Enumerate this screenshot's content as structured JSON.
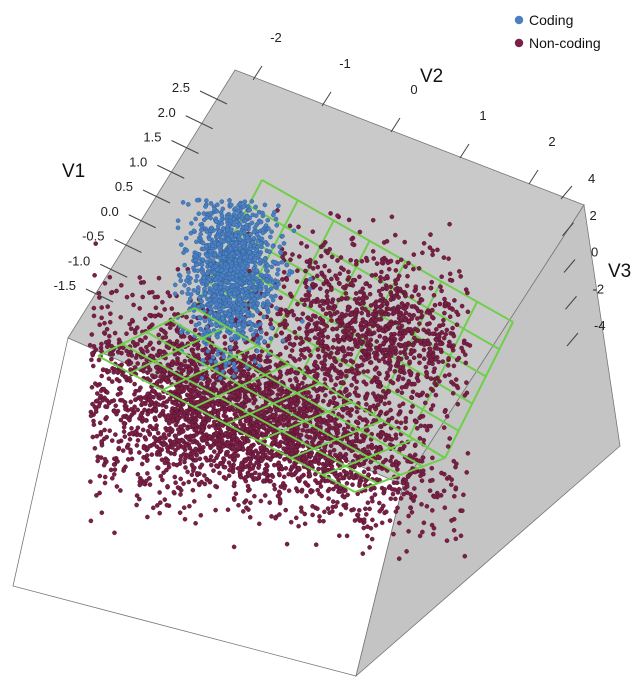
{
  "chart_data": {
    "type": "scatter",
    "subtype": "3d-scatter-with-fitted-surface",
    "axes": {
      "V1": {
        "label": "V1",
        "ticks": [
          "2.5",
          "2.0",
          "1.5",
          "1.0",
          "0.5",
          "0.0",
          "-0.5",
          "-1.0",
          "-1.5"
        ],
        "range": [
          -1.5,
          2.5
        ]
      },
      "V2": {
        "label": "V2",
        "ticks": [
          "-2",
          "-1",
          "0",
          "1",
          "2"
        ],
        "range": [
          -2,
          2
        ]
      },
      "V3": {
        "label": "V3",
        "ticks": [
          "4",
          "2",
          "0",
          "-2",
          "-4"
        ],
        "range": [
          -4,
          4
        ]
      }
    },
    "legend_position": "top-right",
    "series": [
      {
        "name": "Coding",
        "color": "#4a7fc1",
        "approx_points": 1300,
        "center": {
          "V1": 1.0,
          "V2": -1.0,
          "V3": 2.5
        }
      },
      {
        "name": "Non-coding",
        "color": "#7a1f45",
        "approx_points": 5000,
        "center": {
          "V1": -1.0,
          "V2": 0.5,
          "V3": -1.5
        }
      }
    ],
    "surface": {
      "color": "#6fcf4a",
      "description": "fitted separating surface (wireframe)"
    },
    "box_colors": {
      "back_wall": "#c8c8c8",
      "side_wall": "#c4c4c4",
      "floor": "#ffffff"
    }
  }
}
